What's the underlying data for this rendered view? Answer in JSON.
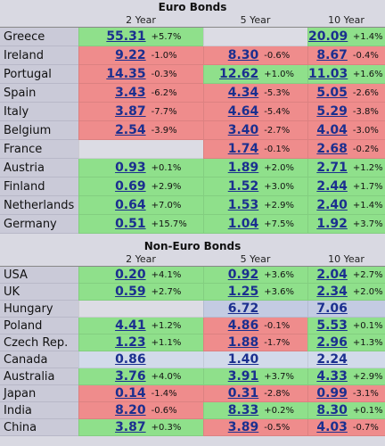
{
  "sections": [
    {
      "title": "Euro Bonds",
      "columns": [
        "2 Year",
        "5 Year",
        "10 Year"
      ],
      "rows": [
        {
          "country": "Greece",
          "cells": [
            {
              "yield": "55.31",
              "change": "+5.7%",
              "color": "#8fe08b"
            },
            {
              "color": "#dcdce4"
            },
            {
              "yield": "20.09",
              "change": "+1.4%",
              "color": "#8fe08b"
            }
          ]
        },
        {
          "country": "Ireland",
          "cells": [
            {
              "yield": "9.22",
              "change": "-1.0%",
              "color": "#ef8c8c"
            },
            {
              "yield": "8.30",
              "change": "-0.6%",
              "color": "#ef8c8c"
            },
            {
              "yield": "8.67",
              "change": "-0.4%",
              "color": "#ef8c8c"
            }
          ]
        },
        {
          "country": "Portugal",
          "cells": [
            {
              "yield": "14.35",
              "change": "-0.3%",
              "color": "#ef8c8c"
            },
            {
              "yield": "12.62",
              "change": "+1.0%",
              "color": "#8fe08b"
            },
            {
              "yield": "11.03",
              "change": "+1.6%",
              "color": "#8fe08b"
            }
          ]
        },
        {
          "country": "Spain",
          "cells": [
            {
              "yield": "3.43",
              "change": "-6.2%",
              "color": "#ef8c8c"
            },
            {
              "yield": "4.34",
              "change": "-5.3%",
              "color": "#ef8c8c"
            },
            {
              "yield": "5.05",
              "change": "-2.6%",
              "color": "#ef8c8c"
            }
          ]
        },
        {
          "country": "Italy",
          "cells": [
            {
              "yield": "3.87",
              "change": "-7.7%",
              "color": "#ef8c8c"
            },
            {
              "yield": "4.64",
              "change": "-5.4%",
              "color": "#ef8c8c"
            },
            {
              "yield": "5.29",
              "change": "-3.8%",
              "color": "#ef8c8c"
            }
          ]
        },
        {
          "country": "Belgium",
          "cells": [
            {
              "yield": "2.54",
              "change": "-3.9%",
              "color": "#ef8c8c"
            },
            {
              "yield": "3.40",
              "change": "-2.7%",
              "color": "#ef8c8c"
            },
            {
              "yield": "4.04",
              "change": "-3.0%",
              "color": "#ef8c8c"
            }
          ]
        },
        {
          "country": "France",
          "cells": [
            {
              "color": "#dcdce4"
            },
            {
              "yield": "1.74",
              "change": "-0.1%",
              "color": "#ef8c8c"
            },
            {
              "yield": "2.68",
              "change": "-0.2%",
              "color": "#ef8c8c"
            }
          ]
        },
        {
          "country": "Austria",
          "cells": [
            {
              "yield": "0.93",
              "change": "+0.1%",
              "color": "#8fe08b"
            },
            {
              "yield": "1.89",
              "change": "+2.0%",
              "color": "#8fe08b"
            },
            {
              "yield": "2.71",
              "change": "+1.2%",
              "color": "#8fe08b"
            }
          ]
        },
        {
          "country": "Finland",
          "cells": [
            {
              "yield": "0.69",
              "change": "+2.9%",
              "color": "#8fe08b"
            },
            {
              "yield": "1.52",
              "change": "+3.0%",
              "color": "#8fe08b"
            },
            {
              "yield": "2.44",
              "change": "+1.7%",
              "color": "#8fe08b"
            }
          ]
        },
        {
          "country": "Netherlands",
          "cells": [
            {
              "yield": "0.64",
              "change": "+7.0%",
              "color": "#8fe08b"
            },
            {
              "yield": "1.53",
              "change": "+2.9%",
              "color": "#8fe08b"
            },
            {
              "yield": "2.40",
              "change": "+1.4%",
              "color": "#8fe08b"
            }
          ]
        },
        {
          "country": "Germany",
          "cells": [
            {
              "yield": "0.51",
              "change": "+15.7%",
              "color": "#8fe08b"
            },
            {
              "yield": "1.04",
              "change": "+7.5%",
              "color": "#8fe08b"
            },
            {
              "yield": "1.92",
              "change": "+3.7%",
              "color": "#8fe08b"
            }
          ]
        }
      ]
    },
    {
      "title": "Non-Euro Bonds",
      "columns": [
        "2 Year",
        "5 Year",
        "10 Year"
      ],
      "rows": [
        {
          "country": "USA",
          "cells": [
            {
              "yield": "0.20",
              "change": "+4.1%",
              "color": "#8fe08b"
            },
            {
              "yield": "0.92",
              "change": "+3.6%",
              "color": "#8fe08b"
            },
            {
              "yield": "2.04",
              "change": "+2.7%",
              "color": "#8fe08b"
            }
          ]
        },
        {
          "country": "UK",
          "cells": [
            {
              "yield": "0.59",
              "change": "+2.7%",
              "color": "#8fe08b"
            },
            {
              "yield": "1.25",
              "change": "+3.6%",
              "color": "#8fe08b"
            },
            {
              "yield": "2.34",
              "change": "+2.0%",
              "color": "#8fe08b"
            }
          ]
        },
        {
          "country": "Hungary",
          "cells": [
            {
              "color": "#dcdce4"
            },
            {
              "yield": "6.72",
              "color": "#c3cbe2"
            },
            {
              "yield": "7.06",
              "color": "#c3cbe2"
            }
          ]
        },
        {
          "country": "Poland",
          "cells": [
            {
              "yield": "4.41",
              "change": "+1.2%",
              "color": "#8fe08b"
            },
            {
              "yield": "4.86",
              "change": "-0.1%",
              "color": "#ef8c8c"
            },
            {
              "yield": "5.53",
              "change": "+0.1%",
              "color": "#8fe08b"
            }
          ]
        },
        {
          "country": "Czech Rep.",
          "cells": [
            {
              "yield": "1.23",
              "change": "+1.1%",
              "color": "#8fe08b"
            },
            {
              "yield": "1.88",
              "change": "-1.7%",
              "color": "#ef8c8c"
            },
            {
              "yield": "2.96",
              "change": "+1.3%",
              "color": "#8fe08b"
            }
          ]
        },
        {
          "country": "Canada",
          "cells": [
            {
              "yield": "0.86",
              "color": "#d2daea"
            },
            {
              "yield": "1.40",
              "color": "#d2daea"
            },
            {
              "yield": "2.24",
              "color": "#d2daea"
            }
          ]
        },
        {
          "country": "Australia",
          "cells": [
            {
              "yield": "3.76",
              "change": "+4.0%",
              "color": "#8fe08b"
            },
            {
              "yield": "3.91",
              "change": "+3.7%",
              "color": "#8fe08b"
            },
            {
              "yield": "4.33",
              "change": "+2.9%",
              "color": "#8fe08b"
            }
          ]
        },
        {
          "country": "Japan",
          "cells": [
            {
              "yield": "0.14",
              "change": "-1.4%",
              "color": "#ef8c8c"
            },
            {
              "yield": "0.31",
              "change": "-2.8%",
              "color": "#ef8c8c"
            },
            {
              "yield": "0.99",
              "change": "-3.1%",
              "color": "#ef8c8c"
            }
          ]
        },
        {
          "country": "India",
          "cells": [
            {
              "yield": "8.20",
              "change": "-0.6%",
              "color": "#ef8c8c"
            },
            {
              "yield": "8.33",
              "change": "+0.2%",
              "color": "#8fe08b"
            },
            {
              "yield": "8.30",
              "change": "+0.1%",
              "color": "#8fe08b"
            }
          ]
        },
        {
          "country": "China",
          "cells": [
            {
              "yield": "3.87",
              "change": "+0.3%",
              "color": "#8fe08b"
            },
            {
              "yield": "3.89",
              "change": "-0.5%",
              "color": "#ef8c8c"
            },
            {
              "yield": "4.03",
              "change": "-0.7%",
              "color": "#ef8c8c"
            }
          ]
        }
      ]
    }
  ]
}
